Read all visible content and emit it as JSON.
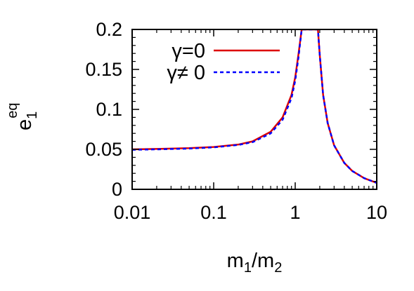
{
  "chart_data": {
    "type": "line",
    "xscale": "log",
    "xlim": [
      0.01,
      10
    ],
    "ylim": [
      0,
      0.2
    ],
    "grid": false,
    "legend_position": "top-left",
    "xlabel": {
      "main": "m",
      "sub1": "1",
      "slash": "/m",
      "sub2": "2"
    },
    "ylabel": {
      "main": "e",
      "sub": "1",
      "sup": "eq"
    },
    "x_ticks": [
      {
        "value": 0.01,
        "label": "0.01"
      },
      {
        "value": 0.1,
        "label": "0.1"
      },
      {
        "value": 1,
        "label": "1"
      },
      {
        "value": 10,
        "label": "10"
      }
    ],
    "y_ticks": [
      {
        "value": 0,
        "label": "0"
      },
      {
        "value": 0.05,
        "label": "0.05"
      },
      {
        "value": 0.1,
        "label": "0.1"
      },
      {
        "value": 0.15,
        "label": "0.15"
      },
      {
        "value": 0.2,
        "label": "0.2"
      }
    ],
    "series": [
      {
        "name": "γ=0",
        "color": "#dd0000",
        "style": "solid",
        "x": [
          0.01,
          0.02,
          0.05,
          0.1,
          0.2,
          0.3,
          0.5,
          0.7,
          0.9,
          1.0,
          1.1,
          1.2,
          1.9,
          2.0,
          2.2,
          2.5,
          3.0,
          4.0,
          5.0,
          7.0,
          10.0
        ],
        "y": [
          0.05,
          0.0505,
          0.0515,
          0.053,
          0.056,
          0.06,
          0.072,
          0.09,
          0.118,
          0.14,
          0.17,
          0.2,
          0.2,
          0.168,
          0.118,
          0.083,
          0.055,
          0.033,
          0.023,
          0.014,
          0.008
        ]
      },
      {
        "name": "γ≠ 0",
        "color": "#0000ff",
        "style": "dashed",
        "x": [
          0.01,
          0.02,
          0.05,
          0.1,
          0.2,
          0.3,
          0.5,
          0.7,
          0.9,
          1.0,
          1.1,
          1.2,
          1.9,
          2.0,
          2.2,
          2.5,
          3.0,
          4.0,
          5.0,
          7.0,
          10.0
        ],
        "y": [
          0.0495,
          0.05,
          0.051,
          0.0525,
          0.0555,
          0.059,
          0.07,
          0.087,
          0.114,
          0.136,
          0.166,
          0.2,
          0.2,
          0.168,
          0.118,
          0.083,
          0.055,
          0.033,
          0.023,
          0.014,
          0.008
        ]
      }
    ]
  }
}
